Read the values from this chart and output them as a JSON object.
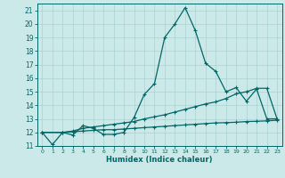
{
  "xlabel": "Humidex (Indice chaleur)",
  "background_color": "#cce9e9",
  "grid_color": "#aad0d0",
  "line_color": "#006666",
  "xlim": [
    -0.5,
    23.5
  ],
  "ylim": [
    11,
    21.5
  ],
  "xticks": [
    0,
    1,
    2,
    3,
    4,
    5,
    6,
    7,
    8,
    9,
    10,
    11,
    12,
    13,
    14,
    15,
    16,
    17,
    18,
    19,
    20,
    21,
    22,
    23
  ],
  "yticks": [
    11,
    12,
    13,
    14,
    15,
    16,
    17,
    18,
    19,
    20,
    21
  ],
  "line1_x": [
    0,
    1,
    2,
    3,
    4,
    5,
    6,
    7,
    8,
    9,
    10,
    11,
    12,
    13,
    14,
    15,
    16,
    17,
    18,
    19,
    20,
    21,
    22,
    23
  ],
  "line1_y": [
    12.0,
    11.1,
    12.0,
    11.8,
    12.5,
    12.3,
    11.85,
    11.85,
    12.0,
    13.1,
    14.8,
    15.6,
    19.0,
    20.0,
    21.2,
    19.5,
    17.1,
    16.5,
    15.0,
    15.3,
    14.3,
    15.2,
    13.0,
    13.0
  ],
  "line2_x": [
    0,
    2,
    3,
    4,
    5,
    6,
    7,
    8,
    9,
    10,
    11,
    12,
    13,
    14,
    15,
    16,
    17,
    18,
    19,
    20,
    21,
    22,
    23
  ],
  "line2_y": [
    12.0,
    12.0,
    12.1,
    12.3,
    12.4,
    12.5,
    12.6,
    12.7,
    12.8,
    13.0,
    13.15,
    13.3,
    13.5,
    13.7,
    13.9,
    14.1,
    14.25,
    14.5,
    14.85,
    15.0,
    15.25,
    15.25,
    13.0
  ],
  "line3_x": [
    0,
    2,
    3,
    4,
    5,
    6,
    7,
    8,
    9,
    10,
    11,
    12,
    13,
    14,
    15,
    16,
    17,
    18,
    19,
    20,
    21,
    22,
    23
  ],
  "line3_y": [
    12.0,
    12.0,
    12.05,
    12.1,
    12.15,
    12.2,
    12.2,
    12.25,
    12.3,
    12.35,
    12.4,
    12.45,
    12.5,
    12.55,
    12.6,
    12.65,
    12.7,
    12.72,
    12.75,
    12.8,
    12.82,
    12.85,
    12.9
  ]
}
